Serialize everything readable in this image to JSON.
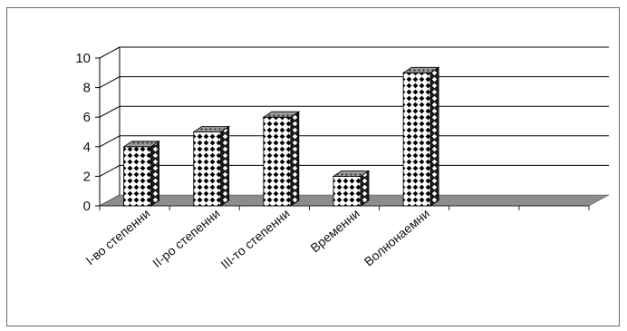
{
  "chart_data": {
    "type": "bar",
    "style": "3d-column",
    "categories": [
      "I-во степенни",
      "II-ро степенни",
      "III-то степенни",
      "Временни",
      "Волнонаемни"
    ],
    "values": [
      4,
      5,
      6,
      2,
      9
    ],
    "ylim": [
      0,
      10
    ],
    "yticks": [
      "0",
      "2",
      "4",
      "6",
      "8",
      "10"
    ],
    "title": "",
    "xlabel": "",
    "ylabel": "",
    "grid": true,
    "legend": "none",
    "colors": {
      "bar_pattern_bg": "#ffffff",
      "bar_pattern_fg": "#000000",
      "floor": "#8c8c8c",
      "grid": "#000000"
    }
  }
}
